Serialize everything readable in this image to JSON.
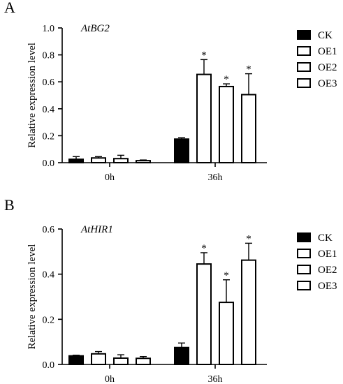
{
  "chart_data": [
    {
      "type": "bar",
      "panel": "A",
      "annotation": "AtBG2",
      "ylabel": "Relative expression level",
      "xlabel": "",
      "categories": [
        "0h",
        "36h"
      ],
      "ylim": [
        0,
        1.0
      ],
      "yticks": [
        "0.0",
        "0.2",
        "0.4",
        "0.6",
        "0.8",
        "1.0"
      ],
      "legend_placement": "right",
      "series": [
        {
          "name": "CK",
          "fill": "#000000",
          "values": [
            0.025,
            0.175
          ],
          "errors": [
            0.02,
            0.01
          ],
          "significant": [
            false,
            false
          ]
        },
        {
          "name": "OE1",
          "fill": "#ffffff",
          "values": [
            0.035,
            0.655
          ],
          "errors": [
            0.01,
            0.11
          ],
          "significant": [
            false,
            true
          ]
        },
        {
          "name": "OE2",
          "fill": "#ffffff",
          "values": [
            0.03,
            0.565
          ],
          "errors": [
            0.025,
            0.02
          ],
          "significant": [
            false,
            true
          ]
        },
        {
          "name": "OE3",
          "fill": "#ffffff",
          "values": [
            0.015,
            0.505
          ],
          "errors": [
            0.005,
            0.155
          ],
          "significant": [
            false,
            true
          ]
        }
      ],
      "significance_marker": "*"
    },
    {
      "type": "bar",
      "panel": "B",
      "annotation": "AtHIR1",
      "ylabel": "Relative expression level",
      "xlabel": "",
      "categories": [
        "0h",
        "36h"
      ],
      "ylim": [
        0,
        0.6
      ],
      "yticks": [
        "0.0",
        "0.2",
        "0.4",
        "0.6"
      ],
      "legend_placement": "right",
      "series": [
        {
          "name": "CK",
          "fill": "#000000",
          "values": [
            0.038,
            0.075
          ],
          "errors": [
            0.003,
            0.02
          ],
          "significant": [
            false,
            false
          ]
        },
        {
          "name": "OE1",
          "fill": "#ffffff",
          "values": [
            0.047,
            0.445
          ],
          "errors": [
            0.01,
            0.05
          ],
          "significant": [
            false,
            true
          ]
        },
        {
          "name": "OE2",
          "fill": "#ffffff",
          "values": [
            0.028,
            0.275
          ],
          "errors": [
            0.015,
            0.1
          ],
          "significant": [
            false,
            true
          ]
        },
        {
          "name": "OE3",
          "fill": "#ffffff",
          "values": [
            0.027,
            0.462
          ],
          "errors": [
            0.008,
            0.075
          ],
          "significant": [
            false,
            true
          ]
        }
      ],
      "significance_marker": "*"
    }
  ]
}
